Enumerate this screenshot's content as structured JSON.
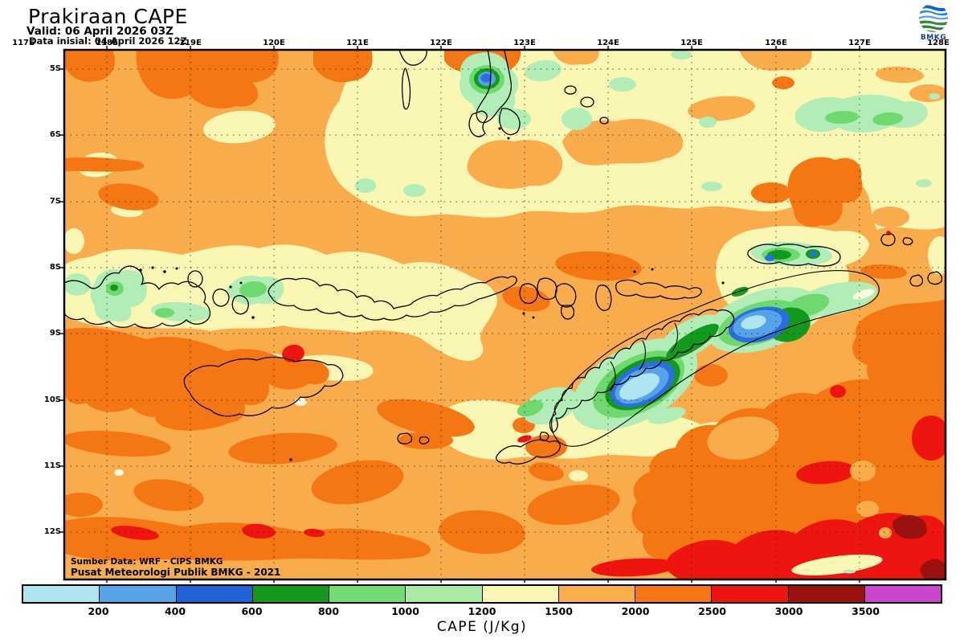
{
  "header": {
    "title": "Prakiraan CAPE",
    "valid_line": "Valid: 06 April 2026 03Z",
    "init_line": "Data inisial: 04 April 2026 12Z"
  },
  "logo": {
    "label": "BMKG"
  },
  "map": {
    "lon_labels": [
      "117E",
      "118E",
      "119E",
      "120E",
      "121E",
      "122E",
      "123E",
      "124E",
      "125E",
      "126E",
      "127E",
      "128E"
    ],
    "lat_labels": [
      "5S",
      "6S",
      "7S",
      "8S",
      "9S",
      "10S",
      "11S",
      "12S"
    ],
    "source_line1": "Sumber Data: WRF - CIPS BMKG",
    "source_line2": "Pusat Meteorologi Publik BMKG - 2021"
  },
  "colorbar": {
    "title": "CAPE (J/Kg)",
    "tick_labels": [
      "200",
      "400",
      "600",
      "800",
      "1000",
      "1200",
      "1500",
      "2000",
      "2500",
      "3000",
      "3500"
    ],
    "segment_colors": [
      "#AEE5F0",
      "#55A3E8",
      "#2163D6",
      "#13991E",
      "#72DB72",
      "#A9EBA5",
      "#FAF6B4",
      "#F8B04A",
      "#F57714",
      "#EE1410",
      "#9B1110",
      "#CC46CC"
    ]
  },
  "palette": {
    "base_fill": "#F8AC4C",
    "pale_yellow": "#FAF6B4",
    "dark_orange": "#F57714",
    "red": "#EE1410",
    "dark_red": "#9B1110",
    "light_green": "#B2EDB8",
    "medium_green": "#6FD96F",
    "dark_green": "#13991E",
    "dark_blue": "#2A6FDD",
    "medium_blue": "#55A3E8",
    "light_cyan": "#AEE5F0"
  }
}
